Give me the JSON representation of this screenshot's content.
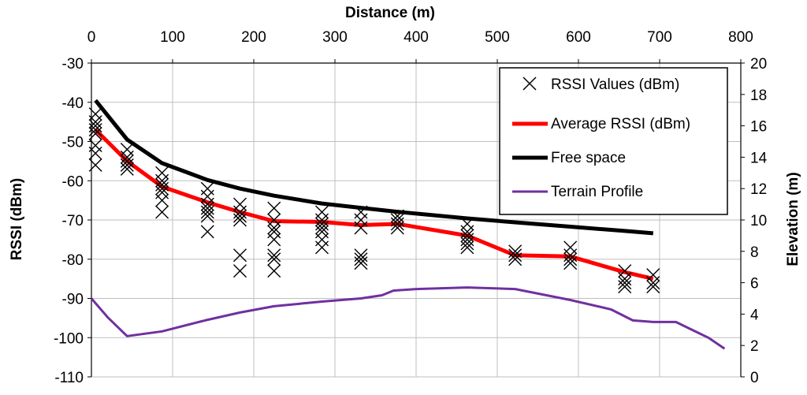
{
  "chart_data": {
    "type": "line",
    "title": "",
    "x_axis": {
      "label": "Distance (m)",
      "position": "top",
      "range": [
        0,
        800
      ],
      "ticks": [
        "0",
        "100",
        "200",
        "300",
        "400",
        "500",
        "600",
        "700",
        "800"
      ]
    },
    "y_left": {
      "label": "RSSI (dBm)",
      "range": [
        -110,
        -30
      ],
      "ticks": [
        "-30",
        "-40",
        "-50",
        "-60",
        "-70",
        "-80",
        "-90",
        "-100",
        "-110"
      ]
    },
    "y_right": {
      "label": "Elevation (m)",
      "range": [
        0,
        20
      ],
      "ticks": [
        "20",
        "18",
        "16",
        "14",
        "12",
        "10",
        "8",
        "6",
        "4",
        "2",
        "0"
      ]
    },
    "grid": true,
    "legend_position": "top-right",
    "series": [
      {
        "name": "RSSI Values (dBm)",
        "kind": "scatter",
        "marker": "x",
        "color": "#000000",
        "axis": "left",
        "points": [
          [
            5,
            -43
          ],
          [
            5,
            -45
          ],
          [
            5,
            -46
          ],
          [
            5,
            -47
          ],
          [
            5,
            -48
          ],
          [
            5,
            -51
          ],
          [
            5,
            -53
          ],
          [
            5,
            -56
          ],
          [
            44,
            -52
          ],
          [
            44,
            -54
          ],
          [
            44,
            -55
          ],
          [
            44,
            -56
          ],
          [
            44,
            -57
          ],
          [
            87,
            -58
          ],
          [
            87,
            -60
          ],
          [
            87,
            -61
          ],
          [
            87,
            -62
          ],
          [
            87,
            -63
          ],
          [
            87,
            -65
          ],
          [
            87,
            -68
          ],
          [
            143,
            -62
          ],
          [
            143,
            -64
          ],
          [
            143,
            -66
          ],
          [
            143,
            -67
          ],
          [
            143,
            -68
          ],
          [
            143,
            -69
          ],
          [
            143,
            -73
          ],
          [
            183,
            -66
          ],
          [
            183,
            -68
          ],
          [
            183,
            -69
          ],
          [
            183,
            -70
          ],
          [
            183,
            -79
          ],
          [
            183,
            -83
          ],
          [
            225,
            -67
          ],
          [
            225,
            -70
          ],
          [
            225,
            -72
          ],
          [
            225,
            -73
          ],
          [
            225,
            -75
          ],
          [
            225,
            -79
          ],
          [
            225,
            -80
          ],
          [
            225,
            -83
          ],
          [
            284,
            -68
          ],
          [
            284,
            -70
          ],
          [
            284,
            -71
          ],
          [
            284,
            -72
          ],
          [
            284,
            -73
          ],
          [
            284,
            -75
          ],
          [
            284,
            -77
          ],
          [
            332,
            -68
          ],
          [
            332,
            -70
          ],
          [
            332,
            -72
          ],
          [
            332,
            -79
          ],
          [
            332,
            -80
          ],
          [
            332,
            -81
          ],
          [
            377,
            -69
          ],
          [
            377,
            -70
          ],
          [
            377,
            -71
          ],
          [
            377,
            -72
          ],
          [
            463,
            -71
          ],
          [
            463,
            -73
          ],
          [
            463,
            -74
          ],
          [
            463,
            -75
          ],
          [
            463,
            -76
          ],
          [
            463,
            -77
          ],
          [
            522,
            -78
          ],
          [
            522,
            -79
          ],
          [
            522,
            -80
          ],
          [
            590,
            -77
          ],
          [
            590,
            -79
          ],
          [
            590,
            -80
          ],
          [
            590,
            -81
          ],
          [
            657,
            -83
          ],
          [
            657,
            -85
          ],
          [
            657,
            -86
          ],
          [
            657,
            -87
          ],
          [
            692,
            -84
          ],
          [
            692,
            -86
          ],
          [
            692,
            -87
          ]
        ]
      },
      {
        "name": "Average RSSI (dBm)",
        "kind": "line",
        "color": "#ff0000",
        "axis": "left",
        "x": [
          5,
          44,
          87,
          143,
          183,
          225,
          284,
          332,
          377,
          463,
          522,
          590,
          657,
          692
        ],
        "y": [
          -47,
          -55,
          -61.5,
          -65.5,
          -68,
          -70.3,
          -70.5,
          -71.3,
          -71,
          -74,
          -79,
          -79.3,
          -83.3,
          -85
        ]
      },
      {
        "name": "Free space",
        "kind": "line",
        "color": "#000000",
        "axis": "left",
        "x": [
          5,
          44,
          87,
          143,
          183,
          225,
          284,
          332,
          377,
          463,
          522,
          590,
          657,
          692
        ],
        "y": [
          -39.5,
          -49.5,
          -55.5,
          -59.8,
          -62,
          -63.8,
          -65.8,
          -66.9,
          -67.9,
          -69.6,
          -70.6,
          -71.7,
          -72.8,
          -73.4
        ]
      },
      {
        "name": "Terrain Profile",
        "kind": "line",
        "color": "#7030a0",
        "axis": "right",
        "x": [
          0,
          20,
          44,
          87,
          140,
          183,
          225,
          284,
          332,
          358,
          372,
          400,
          463,
          522,
          590,
          640,
          667,
          692,
          720,
          760,
          780
        ],
        "y": [
          5,
          3.8,
          2.6,
          2.9,
          3.6,
          4.1,
          4.5,
          4.8,
          5,
          5.2,
          5.5,
          5.6,
          5.7,
          5.6,
          4.9,
          4.3,
          3.6,
          3.5,
          3.5,
          2.5,
          1.8
        ]
      }
    ]
  }
}
